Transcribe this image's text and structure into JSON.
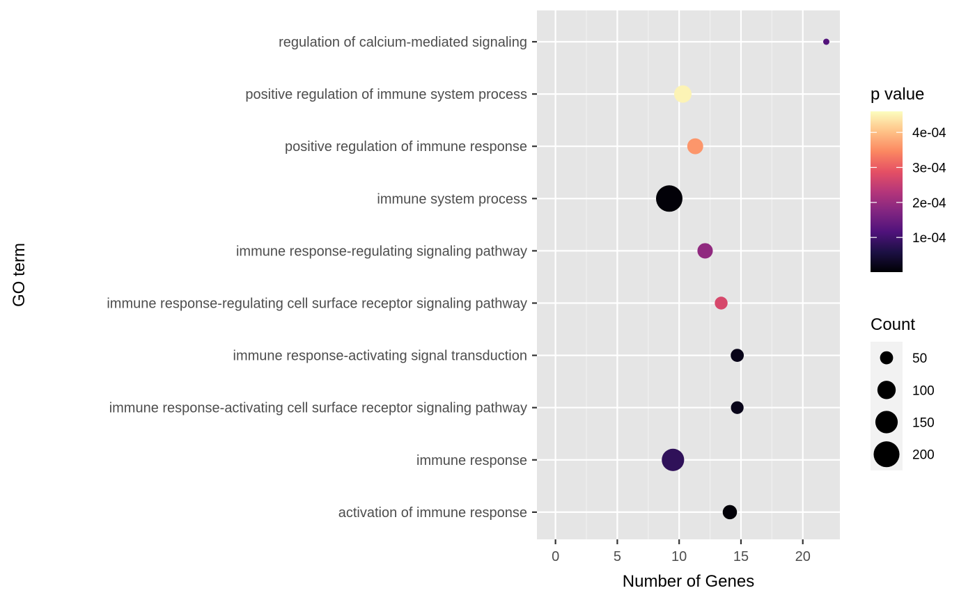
{
  "chart_data": {
    "type": "scatter",
    "xlabel": "Number of Genes",
    "ylabel": "GO term",
    "xlim": [
      -1.5,
      23
    ],
    "x_ticks": [
      0,
      5,
      10,
      15,
      20
    ],
    "grid": true,
    "categories": [
      "activation of immune response",
      "immune response",
      "immune response-activating cell surface receptor signaling pathway",
      "immune response-activating signal transduction",
      "immune response-regulating cell surface receptor signaling pathway",
      "immune response-regulating signaling pathway",
      "immune system process",
      "positive regulation of immune response",
      "positive regulation of immune system process",
      "regulation of calcium-mediated signaling"
    ],
    "points": [
      {
        "term": "activation of immune response",
        "x": 14.1,
        "count": 60,
        "p_value": 5e-06
      },
      {
        "term": "immune response",
        "x": 9.5,
        "count": 150,
        "p_value": 8e-05
      },
      {
        "term": "immune response-activating cell surface receptor signaling pathway",
        "x": 14.7,
        "count": 47,
        "p_value": 2e-05
      },
      {
        "term": "immune response-activating signal transduction",
        "x": 14.7,
        "count": 50,
        "p_value": 2e-05
      },
      {
        "term": "immune response-regulating cell surface receptor signaling pathway",
        "x": 13.4,
        "count": 48,
        "p_value": 0.00027
      },
      {
        "term": "immune response-regulating signaling pathway",
        "x": 12.1,
        "count": 70,
        "p_value": 0.00019
      },
      {
        "term": "immune system process",
        "x": 9.2,
        "count": 210,
        "p_value": 5e-06
      },
      {
        "term": "positive regulation of immune response",
        "x": 11.3,
        "count": 75,
        "p_value": 0.00036
      },
      {
        "term": "positive regulation of immune system process",
        "x": 10.3,
        "count": 90,
        "p_value": 0.00045
      },
      {
        "term": "regulation of calcium-mediated signaling",
        "x": 21.9,
        "count": 10,
        "p_value": 0.00012
      }
    ],
    "color_legend": {
      "title": "p value",
      "range": [
        1e-06,
        0.00046
      ],
      "ticks": [
        {
          "value": 0.0001,
          "label": "1e-04"
        },
        {
          "value": 0.0002,
          "label": "2e-04"
        },
        {
          "value": 0.0003,
          "label": "3e-04"
        },
        {
          "value": 0.0004,
          "label": "4e-04"
        }
      ],
      "colors": [
        "#000004",
        "#1c1044",
        "#4f127b",
        "#812581",
        "#b5367a",
        "#e55064",
        "#fb8761",
        "#fec287",
        "#fcfdbf"
      ]
    },
    "size_legend": {
      "title": "Count",
      "breaks": [
        50,
        100,
        150,
        200
      ],
      "labels": [
        "50",
        "100",
        "150",
        "200"
      ],
      "range": [
        10,
        210
      ]
    }
  }
}
